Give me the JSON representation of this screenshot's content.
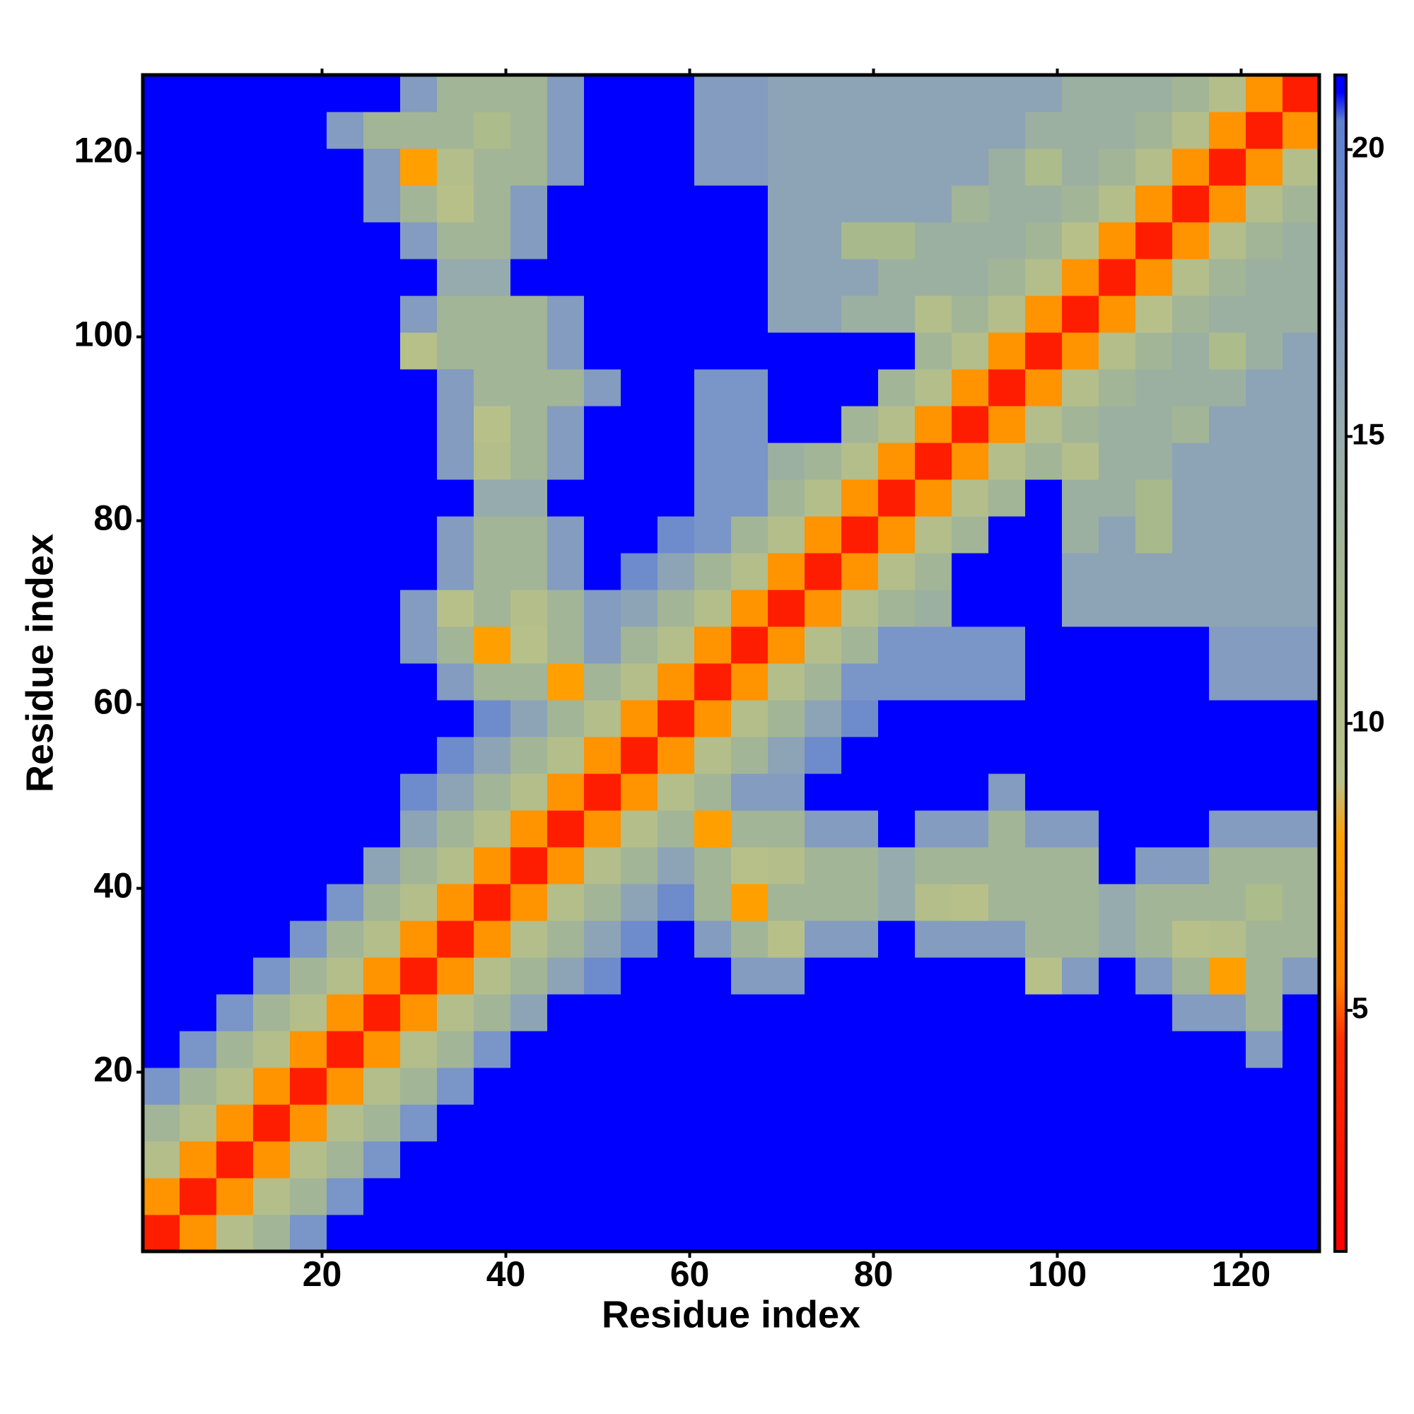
{
  "chart_data": {
    "type": "heatmap",
    "xlabel": "Residue index",
    "ylabel": "Residue index",
    "xlim": [
      0.5,
      128.5
    ],
    "ylim": [
      0.5,
      128.5
    ],
    "xticks": [
      20,
      40,
      60,
      80,
      100,
      120
    ],
    "yticks": [
      20,
      40,
      60,
      80,
      100,
      120
    ],
    "colorbar": {
      "lim": [
        0.8,
        21.3
      ],
      "ticks": [
        5,
        10,
        15,
        20
      ]
    },
    "colorscale": [
      [
        0.8,
        "#ff0000"
      ],
      [
        4.5,
        "#ff3000"
      ],
      [
        5.5,
        "#ff8000"
      ],
      [
        8,
        "#ffa000"
      ],
      [
        9,
        "#b8c08a"
      ],
      [
        12,
        "#a8ba8c"
      ],
      [
        15,
        "#96abad"
      ],
      [
        18,
        "#7a95c8"
      ],
      [
        20.5,
        "#5d7fd0"
      ],
      [
        21,
        "#0000ff"
      ]
    ],
    "x": [
      2.5,
      6.5,
      10.5,
      14.5,
      18.5,
      22.5,
      26.5,
      30.5,
      34.5,
      38.5,
      42.5,
      46.5,
      50.5,
      54.5,
      58.5,
      62.5,
      66.5,
      70.5,
      74.5,
      78.5,
      82.5,
      86.5,
      90.5,
      94.5,
      98.5,
      102.5,
      106.5,
      110.5,
      114.5,
      118.5,
      122.5,
      126.5
    ],
    "y": [
      2.5,
      6.5,
      10.5,
      14.5,
      18.5,
      22.5,
      26.5,
      30.5,
      34.5,
      38.5,
      42.5,
      46.5,
      50.5,
      54.5,
      58.5,
      62.5,
      66.5,
      70.5,
      74.5,
      78.5,
      82.5,
      86.5,
      90.5,
      94.5,
      98.5,
      102.5,
      106.5,
      110.5,
      114.5,
      118.5,
      122.5,
      126.5
    ],
    "values": [
      [
        3,
        7,
        10,
        13,
        18,
        21,
        21,
        21,
        21,
        21,
        21,
        21,
        21,
        21,
        21,
        21,
        21,
        21,
        21,
        21,
        21,
        21,
        21,
        21,
        21,
        21,
        21,
        21,
        21,
        21,
        21,
        21
      ],
      [
        7,
        3,
        7,
        10,
        13,
        18,
        21,
        21,
        21,
        21,
        21,
        21,
        21,
        21,
        21,
        21,
        21,
        21,
        21,
        21,
        21,
        21,
        21,
        21,
        21,
        21,
        21,
        21,
        21,
        21,
        21,
        21
      ],
      [
        10,
        7,
        3,
        7,
        10,
        13,
        18,
        21,
        21,
        21,
        21,
        21,
        21,
        21,
        21,
        21,
        21,
        21,
        21,
        21,
        21,
        21,
        21,
        21,
        21,
        21,
        21,
        21,
        21,
        21,
        21,
        21
      ],
      [
        13,
        10,
        7,
        3,
        7,
        10,
        13,
        18,
        21,
        21,
        21,
        21,
        21,
        21,
        21,
        21,
        21,
        21,
        21,
        21,
        21,
        21,
        21,
        21,
        21,
        21,
        21,
        21,
        21,
        21,
        21,
        21
      ],
      [
        18,
        13,
        10,
        7,
        3,
        7,
        10,
        13,
        18,
        21,
        21,
        21,
        21,
        21,
        21,
        21,
        21,
        21,
        21,
        21,
        21,
        21,
        21,
        21,
        21,
        21,
        21,
        21,
        21,
        21,
        21,
        21
      ],
      [
        21,
        18,
        13,
        10,
        7,
        3,
        7,
        10,
        13,
        18,
        21,
        21,
        21,
        21,
        21,
        21,
        21,
        21,
        21,
        21,
        21,
        21,
        21,
        21,
        21,
        21,
        21,
        21,
        21,
        21,
        17,
        21
      ],
      [
        21,
        21,
        18,
        13,
        10,
        7,
        3,
        7,
        10,
        13,
        16,
        21,
        21,
        21,
        21,
        21,
        21,
        21,
        21,
        21,
        21,
        21,
        21,
        21,
        21,
        21,
        21,
        21,
        17,
        17,
        13,
        21
      ],
      [
        21,
        21,
        21,
        18,
        13,
        10,
        7,
        3,
        7,
        10,
        13,
        16,
        19,
        21,
        21,
        21,
        17,
        17,
        21,
        21,
        21,
        21,
        21,
        21,
        9,
        17,
        21,
        17,
        13,
        8,
        13,
        17
      ],
      [
        21,
        21,
        21,
        21,
        18,
        13,
        10,
        7,
        3,
        7,
        10,
        13,
        16,
        19,
        21,
        17,
        13,
        9,
        17,
        17,
        21,
        17,
        17,
        17,
        13,
        13,
        15,
        13,
        9,
        10,
        13,
        13
      ],
      [
        21,
        21,
        21,
        21,
        21,
        18,
        13,
        10,
        7,
        3,
        7,
        10,
        13,
        16,
        19,
        13,
        8,
        13,
        13,
        13,
        15,
        10,
        9,
        13,
        13,
        13,
        15,
        13,
        13,
        13,
        11,
        13
      ],
      [
        21,
        21,
        21,
        21,
        21,
        21,
        16,
        13,
        10,
        7,
        3,
        7,
        10,
        13,
        16,
        13,
        9,
        10,
        13,
        13,
        15,
        13,
        13,
        13,
        13,
        13,
        21,
        17,
        17,
        13,
        13,
        13
      ],
      [
        21,
        21,
        21,
        21,
        21,
        21,
        21,
        16,
        13,
        10,
        7,
        3,
        7,
        10,
        13,
        8,
        13,
        13,
        17,
        17,
        21,
        17,
        17,
        13,
        17,
        17,
        21,
        21,
        21,
        17,
        17,
        17
      ],
      [
        21,
        21,
        21,
        21,
        21,
        21,
        21,
        19,
        16,
        13,
        10,
        7,
        3,
        7,
        10,
        13,
        17,
        17,
        21,
        21,
        21,
        21,
        21,
        17,
        21,
        21,
        21,
        21,
        21,
        21,
        21,
        21
      ],
      [
        21,
        21,
        21,
        21,
        21,
        21,
        21,
        21,
        19,
        16,
        13,
        10,
        7,
        3,
        7,
        10,
        13,
        16,
        19,
        21,
        21,
        21,
        21,
        21,
        21,
        21,
        21,
        21,
        21,
        21,
        21,
        21
      ],
      [
        21,
        21,
        21,
        21,
        21,
        21,
        21,
        21,
        21,
        19,
        16,
        13,
        10,
        7,
        3,
        7,
        10,
        13,
        16,
        19,
        21,
        21,
        21,
        21,
        21,
        21,
        21,
        21,
        21,
        21,
        21,
        21
      ],
      [
        21,
        21,
        21,
        21,
        21,
        21,
        21,
        21,
        17,
        13,
        13,
        8,
        13,
        10,
        7,
        3,
        7,
        10,
        13,
        18,
        18,
        18,
        18,
        18,
        21,
        21,
        21,
        21,
        21,
        17,
        17,
        17
      ],
      [
        21,
        21,
        21,
        21,
        21,
        21,
        21,
        17,
        13,
        8,
        9,
        13,
        17,
        13,
        10,
        7,
        3,
        7,
        10,
        13,
        18,
        18,
        18,
        18,
        21,
        21,
        21,
        21,
        21,
        17,
        17,
        17
      ],
      [
        21,
        21,
        21,
        21,
        21,
        21,
        21,
        17,
        9,
        13,
        10,
        13,
        17,
        16,
        13,
        10,
        7,
        3,
        7,
        10,
        13,
        14,
        21,
        21,
        21,
        16,
        16,
        16,
        16,
        16,
        16,
        16
      ],
      [
        21,
        21,
        21,
        21,
        21,
        21,
        21,
        21,
        17,
        13,
        13,
        17,
        21,
        19,
        16,
        13,
        10,
        7,
        3,
        7,
        10,
        13,
        21,
        21,
        21,
        16,
        16,
        16,
        16,
        16,
        16,
        16
      ],
      [
        21,
        21,
        21,
        21,
        21,
        21,
        21,
        21,
        17,
        13,
        13,
        17,
        21,
        21,
        19,
        18,
        13,
        10,
        7,
        3,
        7,
        10,
        13,
        21,
        21,
        14,
        16,
        12,
        16,
        16,
        16,
        16
      ],
      [
        21,
        21,
        21,
        21,
        21,
        21,
        21,
        21,
        21,
        15,
        15,
        21,
        21,
        21,
        21,
        18,
        18,
        13,
        10,
        7,
        3,
        7,
        10,
        13,
        21,
        14,
        14,
        12,
        16,
        16,
        16,
        16
      ],
      [
        21,
        21,
        21,
        21,
        21,
        21,
        21,
        21,
        17,
        10,
        13,
        17,
        21,
        21,
        21,
        18,
        18,
        14,
        13,
        10,
        7,
        3,
        7,
        10,
        13,
        10,
        14,
        14,
        16,
        16,
        16,
        16
      ],
      [
        21,
        21,
        21,
        21,
        21,
        21,
        21,
        21,
        17,
        9,
        13,
        17,
        21,
        21,
        21,
        18,
        18,
        21,
        21,
        13,
        10,
        7,
        3,
        7,
        10,
        13,
        14,
        14,
        13,
        16,
        16,
        16
      ],
      [
        21,
        21,
        21,
        21,
        21,
        21,
        21,
        21,
        17,
        13,
        13,
        13,
        17,
        21,
        21,
        18,
        18,
        21,
        21,
        21,
        13,
        10,
        7,
        3,
        7,
        10,
        13,
        14,
        14,
        14,
        16,
        16
      ],
      [
        21,
        21,
        21,
        21,
        21,
        21,
        21,
        9,
        13,
        13,
        13,
        17,
        21,
        21,
        21,
        21,
        21,
        21,
        21,
        21,
        21,
        13,
        10,
        7,
        3,
        7,
        10,
        13,
        14,
        11,
        14,
        16
      ],
      [
        21,
        21,
        21,
        21,
        21,
        21,
        21,
        17,
        13,
        13,
        13,
        17,
        21,
        21,
        21,
        21,
        21,
        16,
        16,
        14,
        14,
        10,
        13,
        10,
        7,
        3,
        7,
        9,
        13,
        14,
        14,
        14
      ],
      [
        21,
        21,
        21,
        21,
        21,
        21,
        21,
        21,
        15,
        15,
        21,
        21,
        21,
        21,
        21,
        21,
        21,
        16,
        16,
        16,
        14,
        14,
        14,
        13,
        10,
        7,
        3,
        7,
        10,
        13,
        14,
        14
      ],
      [
        21,
        21,
        21,
        21,
        21,
        21,
        21,
        17,
        13,
        13,
        17,
        21,
        21,
        21,
        21,
        21,
        21,
        16,
        16,
        12,
        12,
        14,
        14,
        14,
        13,
        9,
        7,
        3,
        7,
        10,
        13,
        14
      ],
      [
        21,
        21,
        21,
        21,
        21,
        21,
        17,
        13,
        9,
        13,
        17,
        21,
        21,
        21,
        21,
        21,
        21,
        16,
        16,
        16,
        16,
        16,
        13,
        14,
        14,
        13,
        10,
        7,
        3,
        7,
        10,
        13
      ],
      [
        21,
        21,
        21,
        21,
        21,
        21,
        17,
        8,
        10,
        13,
        13,
        17,
        21,
        21,
        21,
        17,
        17,
        16,
        16,
        16,
        16,
        16,
        16,
        14,
        11,
        14,
        13,
        10,
        7,
        3,
        7,
        10
      ],
      [
        21,
        21,
        21,
        21,
        21,
        17,
        13,
        13,
        13,
        11,
        13,
        17,
        21,
        21,
        21,
        17,
        17,
        16,
        16,
        16,
        16,
        16,
        16,
        16,
        14,
        14,
        14,
        13,
        10,
        7,
        3,
        7
      ],
      [
        21,
        21,
        21,
        21,
        21,
        21,
        21,
        17,
        13,
        13,
        13,
        17,
        21,
        21,
        21,
        17,
        17,
        16,
        16,
        16,
        16,
        16,
        16,
        16,
        16,
        14,
        14,
        14,
        13,
        10,
        7,
        3
      ]
    ]
  }
}
